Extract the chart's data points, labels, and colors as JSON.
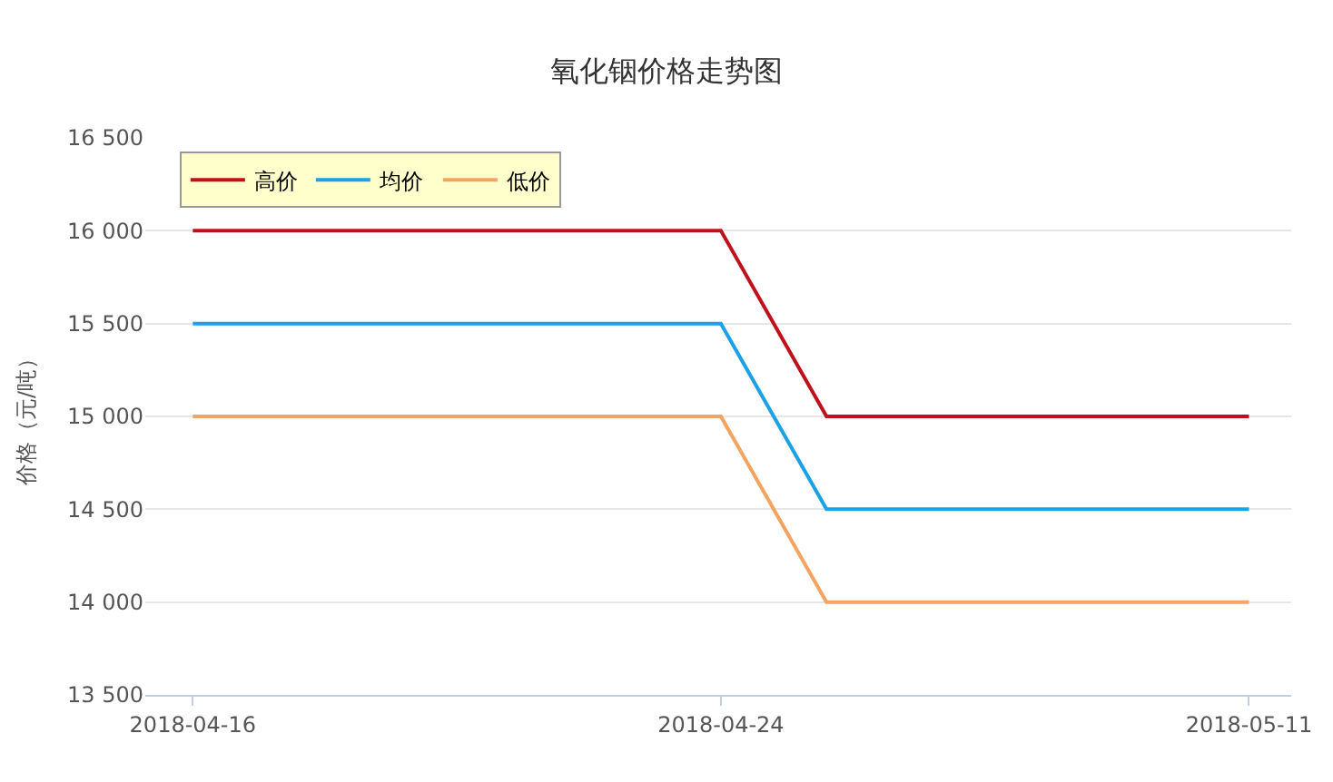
{
  "chart_data": {
    "type": "line",
    "title": "氧化铟价格走势图",
    "ylabel": "价格（元/吨）",
    "categories": [
      "2018-04-16",
      null,
      null,
      null,
      null,
      "2018-04-24",
      null,
      null,
      null,
      null,
      "2018-05-11"
    ],
    "series": [
      {
        "name": "高价",
        "color": "#c0101c",
        "values": [
          16000,
          16000,
          16000,
          16000,
          16000,
          16000,
          15000,
          15000,
          15000,
          15000,
          15000
        ]
      },
      {
        "name": "均价",
        "color": "#1ba1e6",
        "values": [
          15500,
          15500,
          15500,
          15500,
          15500,
          15500,
          14500,
          14500,
          14500,
          14500,
          14500
        ]
      },
      {
        "name": "低价",
        "color": "#f4a460",
        "values": [
          15000,
          15000,
          15000,
          15000,
          15000,
          15000,
          14000,
          14000,
          14000,
          14000,
          14000
        ]
      }
    ],
    "ylim": [
      13500,
      16500
    ],
    "yticks": [
      {
        "value": 13500,
        "label": "13 500"
      },
      {
        "value": 14000,
        "label": "14 000"
      },
      {
        "value": 14500,
        "label": "14 500"
      },
      {
        "value": 15000,
        "label": "15 000"
      },
      {
        "value": 15500,
        "label": "15 500"
      },
      {
        "value": 16000,
        "label": "16 000"
      },
      {
        "value": 16500,
        "label": "16 500"
      }
    ],
    "grid": "y",
    "legend": "top left",
    "marker": "none",
    "line_style": "solid"
  }
}
